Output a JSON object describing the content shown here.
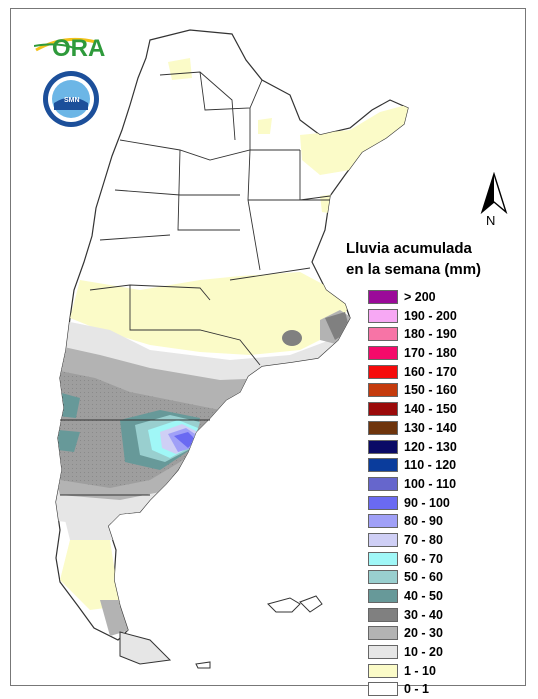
{
  "logo": {
    "text": "ORA"
  },
  "seal": {
    "text": "SERVICIO METEOROLOGICO NACIONAL ARGENTINA"
  },
  "north_arrow": {
    "label": "N"
  },
  "legend": {
    "title_line1": "Lluvia acumulada",
    "title_line2": "en la semana (mm)",
    "items": [
      {
        "label": "> 200",
        "color": "#9b0a99"
      },
      {
        "label": "190 - 200",
        "color": "#f7a8f4"
      },
      {
        "label": "180 - 190",
        "color": "#f774a6"
      },
      {
        "label": "170 - 180",
        "color": "#f50a6a"
      },
      {
        "label": "160 - 170",
        "color": "#f50a0a"
      },
      {
        "label": "150 - 160",
        "color": "#c43a0c"
      },
      {
        "label": "140 - 150",
        "color": "#9b0a0a"
      },
      {
        "label": "130 - 140",
        "color": "#6e340c"
      },
      {
        "label": "120 - 130",
        "color": "#0a0a66"
      },
      {
        "label": "110 - 120",
        "color": "#0a3c9c"
      },
      {
        "label": "100 - 110",
        "color": "#6666cc"
      },
      {
        "label": "90 - 100",
        "color": "#6a6af2"
      },
      {
        "label": "80 - 90",
        "color": "#a0a0f7"
      },
      {
        "label": "70 - 80",
        "color": "#cfcff5"
      },
      {
        "label": "60 - 70",
        "color": "#a0f7f7"
      },
      {
        "label": "50 - 60",
        "color": "#99cfcf"
      },
      {
        "label": "40 - 50",
        "color": "#679999"
      },
      {
        "label": "30 - 40",
        "color": "#808080"
      },
      {
        "label": "20 - 30",
        "color": "#b3b3b3"
      },
      {
        "label": "10 - 20",
        "color": "#e6e6e6"
      },
      {
        "label": "1 - 10",
        "color": "#fbfbc8"
      },
      {
        "label": "0 - 1",
        "color": "#ffffff"
      }
    ]
  }
}
